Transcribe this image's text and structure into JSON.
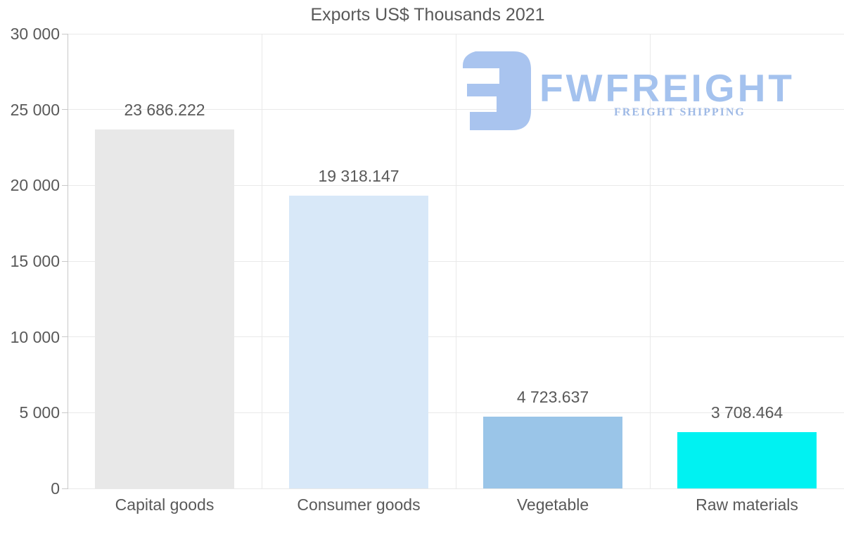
{
  "chart_data": {
    "type": "bar",
    "title": "Exports US$ Thousands 2021",
    "categories": [
      "Capital goods",
      "Consumer goods",
      "Vegetable",
      "Raw materials"
    ],
    "values": [
      23686.222,
      19318.147,
      4723.637,
      3708.464
    ],
    "value_labels": [
      "23 686.222",
      "19 318.147",
      "4 723.637",
      "3 708.464"
    ],
    "bar_colors": [
      "#e8e8e8",
      "#d8e8f8",
      "#9ac5e8",
      "#00f2f2"
    ],
    "ylim": [
      0,
      30000
    ],
    "yticks": [
      {
        "value": 0,
        "label": "0"
      },
      {
        "value": 5000,
        "label": "5 000"
      },
      {
        "value": 10000,
        "label": "10 000"
      },
      {
        "value": 15000,
        "label": "15 000"
      },
      {
        "value": 20000,
        "label": "20 000"
      },
      {
        "value": 25000,
        "label": "25 000"
      },
      {
        "value": 30000,
        "label": "30 000"
      }
    ],
    "grid": true,
    "legend": null,
    "xlabel": "",
    "ylabel": ""
  },
  "watermark": {
    "brand": "FWFREIGHT",
    "tagline": "FREIGHT SHIPPING",
    "brand_color": "#a4c2ee",
    "tagline_color": "#9fbae6",
    "mark_color": "#a9c4ef"
  },
  "style": {
    "text_color": "#595959",
    "grid_color": "#e9e9e9",
    "axis_color": "#c9c9c9",
    "background": "#ffffff"
  }
}
